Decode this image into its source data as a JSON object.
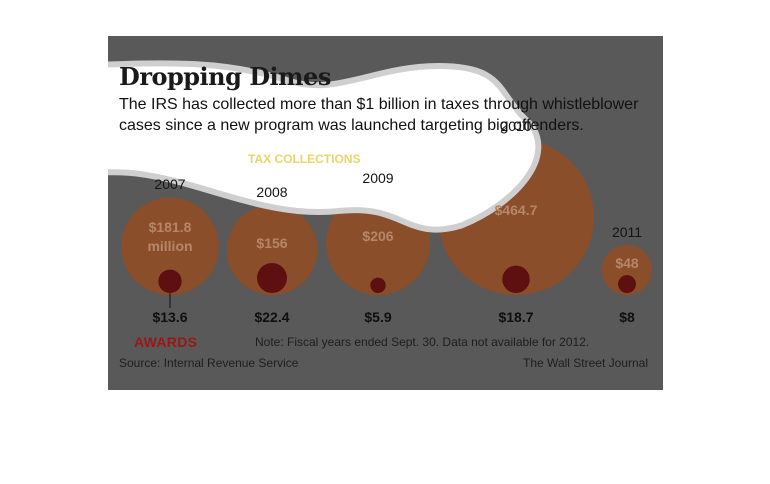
{
  "title": "Dropping Dimes",
  "subtitle": "The IRS has collected more than $1 billion in taxes through whistleblower cases since a new program was launched targeting big offenders.",
  "tax_label": "TAX COLLECTIONS",
  "awards_label": "AWARDS",
  "note": "Note: Fiscal years ended Sept. 30. Data not available for 2012.",
  "source": "Source: Internal Revenue Service",
  "credit": "The Wall Street Journal",
  "colors": {
    "background": "#595959",
    "tax_bubble": "#8a4e2b",
    "tax_value_text": "#b58768",
    "award_bubble": "#5e1010",
    "awards_label": "#9b1616",
    "tax_label": "#e8d56a",
    "banner": "#ffffff"
  },
  "chart_data": {
    "type": "bubble",
    "unit": "million dollars",
    "categories": [
      "2007",
      "2008",
      "2009",
      "2010",
      "2011"
    ],
    "series": [
      {
        "name": "TAX COLLECTIONS",
        "values": [
          181.8,
          156,
          206,
          464.7,
          48
        ],
        "labels": [
          "$181.8",
          "$156",
          "$206",
          "$464.7",
          "$48"
        ],
        "first_label_suffix": "million"
      },
      {
        "name": "AWARDS",
        "values": [
          13.6,
          22.4,
          5.9,
          18.7,
          8
        ],
        "labels": [
          "$13.6",
          "$22.4",
          "$5.9",
          "$18.7",
          "$8"
        ]
      }
    ]
  }
}
